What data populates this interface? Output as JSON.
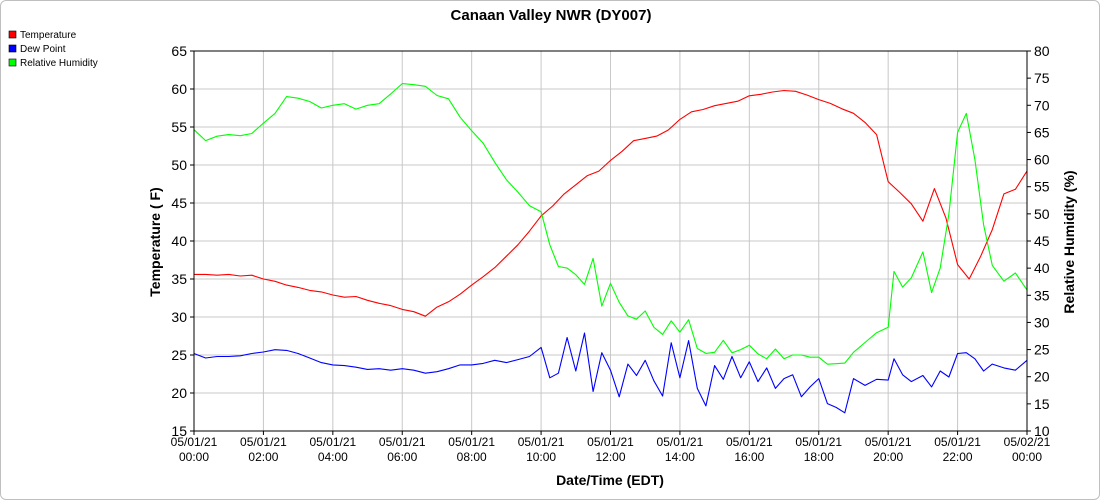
{
  "chart_data": {
    "type": "line",
    "title": "Canaan Valley NWR (DY007)",
    "xlabel": "Date/Time (EDT)",
    "ylabel": "Temperature ( F)",
    "y2label": "Relative Humidity (%)",
    "grid": true,
    "legend_position": "top-left",
    "xlim": [
      "05/01/21 00:00",
      "05/02/21 00:00"
    ],
    "ylim": [
      15,
      65
    ],
    "y2lim": [
      10,
      80
    ],
    "yticks": [
      "15",
      "20",
      "25",
      "30",
      "35",
      "40",
      "45",
      "50",
      "55",
      "60",
      "65"
    ],
    "y2ticks": [
      "10",
      "15",
      "20",
      "25",
      "30",
      "35",
      "40",
      "45",
      "50",
      "55",
      "60",
      "65",
      "70",
      "75",
      "80"
    ],
    "xticks": [
      {
        "date": "05/01/21",
        "time": "00:00"
      },
      {
        "date": "05/01/21",
        "time": "02:00"
      },
      {
        "date": "05/01/21",
        "time": "04:00"
      },
      {
        "date": "05/01/21",
        "time": "06:00"
      },
      {
        "date": "05/01/21",
        "time": "08:00"
      },
      {
        "date": "05/01/21",
        "time": "10:00"
      },
      {
        "date": "05/01/21",
        "time": "12:00"
      },
      {
        "date": "05/01/21",
        "time": "14:00"
      },
      {
        "date": "05/01/21",
        "time": "16:00"
      },
      {
        "date": "05/01/21",
        "time": "18:00"
      },
      {
        "date": "05/01/21",
        "time": "20:00"
      },
      {
        "date": "05/01/21",
        "time": "22:00"
      },
      {
        "date": "05/02/21",
        "time": "00:00"
      }
    ],
    "series": [
      {
        "name": "Temperature",
        "color": "#ff0000",
        "axis": "left",
        "points": [
          [
            "05/01/21 00:00",
            35.6
          ],
          [
            "05/01/21 00:20",
            35.6
          ],
          [
            "05/01/21 00:40",
            35.5
          ],
          [
            "05/01/21 01:00",
            35.6
          ],
          [
            "05/01/21 01:20",
            35.4
          ],
          [
            "05/01/21 01:40",
            35.5
          ],
          [
            "05/01/21 02:00",
            35.0
          ],
          [
            "05/01/21 02:20",
            34.7
          ],
          [
            "05/01/21 02:40",
            34.2
          ],
          [
            "05/01/21 03:00",
            33.9
          ],
          [
            "05/01/21 03:20",
            33.5
          ],
          [
            "05/01/21 03:40",
            33.3
          ],
          [
            "05/01/21 04:00",
            32.9
          ],
          [
            "05/01/21 04:20",
            32.6
          ],
          [
            "05/01/21 04:40",
            32.7
          ],
          [
            "05/01/21 05:00",
            32.2
          ],
          [
            "05/01/21 05:20",
            31.8
          ],
          [
            "05/01/21 05:40",
            31.5
          ],
          [
            "05/01/21 06:00",
            31.0
          ],
          [
            "05/01/21 06:20",
            30.7
          ],
          [
            "05/01/21 06:40",
            30.1
          ],
          [
            "05/01/21 07:00",
            31.3
          ],
          [
            "05/01/21 07:20",
            32.0
          ],
          [
            "05/01/21 07:40",
            33.0
          ],
          [
            "05/01/21 08:00",
            34.2
          ],
          [
            "05/01/21 08:20",
            35.3
          ],
          [
            "05/01/21 08:40",
            36.5
          ],
          [
            "05/01/21 09:00",
            38.0
          ],
          [
            "05/01/21 09:20",
            39.5
          ],
          [
            "05/01/21 09:40",
            41.3
          ],
          [
            "05/01/21 10:00",
            43.3
          ],
          [
            "05/01/21 10:20",
            44.6
          ],
          [
            "05/01/21 10:40",
            46.2
          ],
          [
            "05/01/21 11:00",
            47.4
          ],
          [
            "05/01/21 11:20",
            48.6
          ],
          [
            "05/01/21 11:40",
            49.2
          ],
          [
            "05/01/21 12:00",
            50.6
          ],
          [
            "05/01/21 12:20",
            51.8
          ],
          [
            "05/01/21 12:40",
            53.2
          ],
          [
            "05/01/21 13:00",
            53.5
          ],
          [
            "05/01/21 13:20",
            53.8
          ],
          [
            "05/01/21 13:40",
            54.6
          ],
          [
            "05/01/21 14:00",
            56.0
          ],
          [
            "05/01/21 14:20",
            57.0
          ],
          [
            "05/01/21 14:40",
            57.3
          ],
          [
            "05/01/21 15:00",
            57.8
          ],
          [
            "05/01/21 15:20",
            58.1
          ],
          [
            "05/01/21 15:40",
            58.4
          ],
          [
            "05/01/21 16:00",
            59.1
          ],
          [
            "05/01/21 16:20",
            59.3
          ],
          [
            "05/01/21 16:40",
            59.6
          ],
          [
            "05/01/21 17:00",
            59.8
          ],
          [
            "05/01/21 17:20",
            59.7
          ],
          [
            "05/01/21 17:40",
            59.2
          ],
          [
            "05/01/21 18:00",
            58.6
          ],
          [
            "05/01/21 18:20",
            58.1
          ],
          [
            "05/01/21 18:40",
            57.4
          ],
          [
            "05/01/21 19:00",
            56.8
          ],
          [
            "05/01/21 19:20",
            55.6
          ],
          [
            "05/01/21 19:40",
            54.0
          ],
          [
            "05/01/21 20:00",
            47.8
          ],
          [
            "05/01/21 20:20",
            46.4
          ],
          [
            "05/01/21 20:40",
            44.9
          ],
          [
            "05/01/21 21:00",
            42.6
          ],
          [
            "05/01/21 21:20",
            46.9
          ],
          [
            "05/01/21 21:40",
            43.0
          ],
          [
            "05/01/21 22:00",
            36.9
          ],
          [
            "05/01/21 22:20",
            35.0
          ],
          [
            "05/01/21 22:40",
            38.0
          ],
          [
            "05/01/21 23:00",
            41.5
          ],
          [
            "05/01/21 23:20",
            46.2
          ],
          [
            "05/01/21 23:40",
            46.8
          ],
          [
            "05/02/21 00:00",
            49.2
          ]
        ]
      },
      {
        "name": "Dew Point",
        "color": "#0000ff",
        "axis": "left",
        "points": [
          [
            "05/01/21 00:00",
            25.2
          ],
          [
            "05/01/21 00:20",
            24.6
          ],
          [
            "05/01/21 00:40",
            24.8
          ],
          [
            "05/01/21 01:00",
            24.8
          ],
          [
            "05/01/21 01:20",
            24.9
          ],
          [
            "05/01/21 01:40",
            25.2
          ],
          [
            "05/01/21 02:00",
            25.4
          ],
          [
            "05/01/21 02:20",
            25.7
          ],
          [
            "05/01/21 02:40",
            25.6
          ],
          [
            "05/01/21 03:00",
            25.2
          ],
          [
            "05/01/21 03:20",
            24.6
          ],
          [
            "05/01/21 03:40",
            24.0
          ],
          [
            "05/01/21 04:00",
            23.7
          ],
          [
            "05/01/21 04:20",
            23.6
          ],
          [
            "05/01/21 04:40",
            23.4
          ],
          [
            "05/01/21 05:00",
            23.1
          ],
          [
            "05/01/21 05:20",
            23.2
          ],
          [
            "05/01/21 05:40",
            23.0
          ],
          [
            "05/01/21 06:00",
            23.2
          ],
          [
            "05/01/21 06:20",
            23.0
          ],
          [
            "05/01/21 06:40",
            22.6
          ],
          [
            "05/01/21 07:00",
            22.8
          ],
          [
            "05/01/21 07:20",
            23.2
          ],
          [
            "05/01/21 07:40",
            23.7
          ],
          [
            "05/01/21 08:00",
            23.7
          ],
          [
            "05/01/21 08:20",
            23.9
          ],
          [
            "05/01/21 08:40",
            24.3
          ],
          [
            "05/01/21 09:00",
            24.0
          ],
          [
            "05/01/21 09:20",
            24.4
          ],
          [
            "05/01/21 09:40",
            24.8
          ],
          [
            "05/01/21 10:00",
            26.0
          ],
          [
            "05/01/21 10:15",
            22.0
          ],
          [
            "05/01/21 10:30",
            22.6
          ],
          [
            "05/01/21 10:45",
            27.3
          ],
          [
            "05/01/21 11:00",
            22.9
          ],
          [
            "05/01/21 11:15",
            27.9
          ],
          [
            "05/01/21 11:30",
            20.2
          ],
          [
            "05/01/21 11:45",
            25.3
          ],
          [
            "05/01/21 12:00",
            23.0
          ],
          [
            "05/01/21 12:15",
            19.5
          ],
          [
            "05/01/21 12:30",
            23.8
          ],
          [
            "05/01/21 12:45",
            22.3
          ],
          [
            "05/01/21 13:00",
            24.3
          ],
          [
            "05/01/21 13:15",
            21.6
          ],
          [
            "05/01/21 13:30",
            19.6
          ],
          [
            "05/01/21 13:45",
            26.6
          ],
          [
            "05/01/21 14:00",
            22.0
          ],
          [
            "05/01/21 14:15",
            26.9
          ],
          [
            "05/01/21 14:30",
            20.6
          ],
          [
            "05/01/21 14:45",
            18.3
          ],
          [
            "05/01/21 15:00",
            23.6
          ],
          [
            "05/01/21 15:15",
            21.8
          ],
          [
            "05/01/21 15:30",
            24.8
          ],
          [
            "05/01/21 15:45",
            22.0
          ],
          [
            "05/01/21 16:00",
            24.1
          ],
          [
            "05/01/21 16:15",
            21.5
          ],
          [
            "05/01/21 16:30",
            23.3
          ],
          [
            "05/01/21 16:45",
            20.6
          ],
          [
            "05/01/21 17:00",
            21.9
          ],
          [
            "05/01/21 17:15",
            22.4
          ],
          [
            "05/01/21 17:30",
            19.5
          ],
          [
            "05/01/21 17:45",
            20.8
          ],
          [
            "05/01/21 18:00",
            21.9
          ],
          [
            "05/01/21 18:15",
            18.6
          ],
          [
            "05/01/21 18:30",
            18.1
          ],
          [
            "05/01/21 18:45",
            17.4
          ],
          [
            "05/01/21 19:00",
            21.9
          ],
          [
            "05/01/21 19:20",
            21.0
          ],
          [
            "05/01/21 19:40",
            21.8
          ],
          [
            "05/01/21 20:00",
            21.7
          ],
          [
            "05/01/21 20:10",
            24.5
          ],
          [
            "05/01/21 20:25",
            22.4
          ],
          [
            "05/01/21 20:40",
            21.5
          ],
          [
            "05/01/21 21:00",
            22.3
          ],
          [
            "05/01/21 21:15",
            20.8
          ],
          [
            "05/01/21 21:30",
            22.9
          ],
          [
            "05/01/21 21:45",
            22.1
          ],
          [
            "05/01/21 22:00",
            25.2
          ],
          [
            "05/01/21 22:15",
            25.3
          ],
          [
            "05/01/21 22:30",
            24.5
          ],
          [
            "05/01/21 22:45",
            22.9
          ],
          [
            "05/01/21 23:00",
            23.8
          ],
          [
            "05/01/21 23:20",
            23.3
          ],
          [
            "05/01/21 23:40",
            23.0
          ],
          [
            "05/02/21 00:00",
            24.3
          ]
        ]
      },
      {
        "name": "Relative Humidity",
        "color": "#00ff00",
        "axis": "right",
        "points": [
          [
            "05/01/21 00:00",
            65.5
          ],
          [
            "05/01/21 00:20",
            63.5
          ],
          [
            "05/01/21 00:40",
            64.3
          ],
          [
            "05/01/21 01:00",
            64.6
          ],
          [
            "05/01/21 01:20",
            64.4
          ],
          [
            "05/01/21 01:40",
            64.8
          ],
          [
            "05/01/21 02:00",
            66.7
          ],
          [
            "05/01/21 02:20",
            68.5
          ],
          [
            "05/01/21 02:40",
            71.6
          ],
          [
            "05/01/21 03:00",
            71.3
          ],
          [
            "05/01/21 03:20",
            70.7
          ],
          [
            "05/01/21 03:40",
            69.5
          ],
          [
            "05/01/21 04:00",
            70.0
          ],
          [
            "05/01/21 04:20",
            70.3
          ],
          [
            "05/01/21 04:40",
            69.3
          ],
          [
            "05/01/21 05:00",
            70.0
          ],
          [
            "05/01/21 05:20",
            70.3
          ],
          [
            "05/01/21 05:40",
            72.1
          ],
          [
            "05/01/21 06:00",
            74.0
          ],
          [
            "05/01/21 06:20",
            73.8
          ],
          [
            "05/01/21 06:40",
            73.5
          ],
          [
            "05/01/21 07:00",
            71.8
          ],
          [
            "05/01/21 07:20",
            71.2
          ],
          [
            "05/01/21 07:40",
            67.8
          ],
          [
            "05/01/21 08:00",
            65.3
          ],
          [
            "05/01/21 08:20",
            63.0
          ],
          [
            "05/01/21 08:40",
            59.5
          ],
          [
            "05/01/21 09:00",
            56.3
          ],
          [
            "05/01/21 09:20",
            54.0
          ],
          [
            "05/01/21 09:40",
            51.5
          ],
          [
            "05/01/21 10:00",
            50.4
          ],
          [
            "05/01/21 10:15",
            44.3
          ],
          [
            "05/01/21 10:30",
            40.3
          ],
          [
            "05/01/21 10:45",
            40.0
          ],
          [
            "05/01/21 11:00",
            38.8
          ],
          [
            "05/01/21 11:15",
            37.0
          ],
          [
            "05/01/21 11:30",
            41.8
          ],
          [
            "05/01/21 11:45",
            33.0
          ],
          [
            "05/01/21 12:00",
            37.2
          ],
          [
            "05/01/21 12:15",
            33.7
          ],
          [
            "05/01/21 12:30",
            31.2
          ],
          [
            "05/01/21 12:45",
            30.6
          ],
          [
            "05/01/21 13:00",
            32.1
          ],
          [
            "05/01/21 13:15",
            29.1
          ],
          [
            "05/01/21 13:30",
            27.8
          ],
          [
            "05/01/21 13:45",
            30.3
          ],
          [
            "05/01/21 14:00",
            28.2
          ],
          [
            "05/01/21 14:15",
            30.5
          ],
          [
            "05/01/21 14:30",
            25.2
          ],
          [
            "05/01/21 14:45",
            24.3
          ],
          [
            "05/01/21 15:00",
            24.5
          ],
          [
            "05/01/21 15:15",
            26.7
          ],
          [
            "05/01/21 15:30",
            24.4
          ],
          [
            "05/01/21 15:45",
            25.0
          ],
          [
            "05/01/21 16:00",
            25.8
          ],
          [
            "05/01/21 16:15",
            24.2
          ],
          [
            "05/01/21 16:30",
            23.3
          ],
          [
            "05/01/21 16:45",
            25.1
          ],
          [
            "05/01/21 17:00",
            23.3
          ],
          [
            "05/01/21 17:15",
            24.0
          ],
          [
            "05/01/21 17:30",
            24.0
          ],
          [
            "05/01/21 17:45",
            23.6
          ],
          [
            "05/01/21 18:00",
            23.6
          ],
          [
            "05/01/21 18:15",
            22.3
          ],
          [
            "05/01/21 18:30",
            22.4
          ],
          [
            "05/01/21 18:45",
            22.5
          ],
          [
            "05/01/21 19:00",
            24.5
          ],
          [
            "05/01/21 19:20",
            26.3
          ],
          [
            "05/01/21 19:40",
            28.1
          ],
          [
            "05/01/21 20:00",
            29.1
          ],
          [
            "05/01/21 20:10",
            39.4
          ],
          [
            "05/01/21 20:25",
            36.5
          ],
          [
            "05/01/21 20:40",
            38.2
          ],
          [
            "05/01/21 21:00",
            43.0
          ],
          [
            "05/01/21 21:15",
            35.5
          ],
          [
            "05/01/21 21:30",
            40.0
          ],
          [
            "05/01/21 21:45",
            50.0
          ],
          [
            "05/01/21 22:00",
            65.0
          ],
          [
            "05/01/21 22:15",
            68.5
          ],
          [
            "05/01/21 22:30",
            60.0
          ],
          [
            "05/01/21 22:45",
            48.0
          ],
          [
            "05/01/21 23:00",
            40.5
          ],
          [
            "05/01/21 23:20",
            37.6
          ],
          [
            "05/01/21 23:40",
            39.1
          ],
          [
            "05/02/21 00:00",
            36.0
          ]
        ]
      }
    ]
  }
}
